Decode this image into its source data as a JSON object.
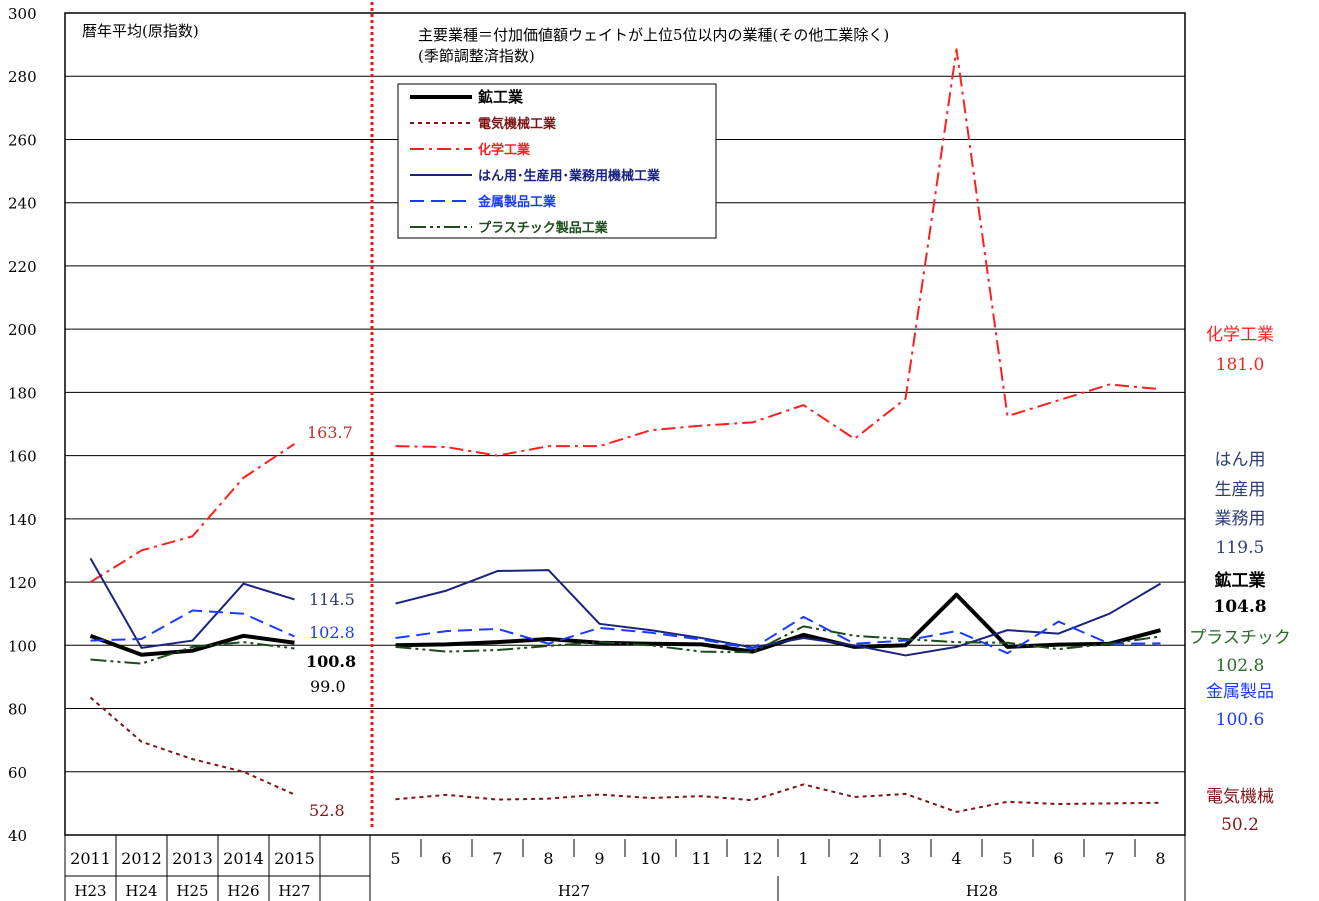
{
  "chart_data": {
    "type": "line",
    "note_annual": "暦年平均(原指数)",
    "note_monthly_line1": "主要業種＝付加価値額ウェイトが上位5位以内の業種(その他工業除く)",
    "note_monthly_line2": "(季節調整済指数)",
    "y_ticks": [
      "300",
      "280",
      "260",
      "240",
      "220",
      "200",
      "180",
      "160",
      "140",
      "120",
      "100",
      "80",
      "60",
      "40"
    ],
    "ylim": [
      40,
      300
    ],
    "grid": true,
    "legend_position": "top-center",
    "annual_categories": [
      "2011",
      "2012",
      "2013",
      "2014",
      "2015"
    ],
    "annual_era": [
      "H23",
      "H24",
      "H25",
      "H26",
      "H27"
    ],
    "monthly_categories": [
      "5",
      "6",
      "7",
      "8",
      "9",
      "10",
      "11",
      "12",
      "1",
      "2",
      "3",
      "4",
      "5",
      "6",
      "7",
      "8"
    ],
    "monthly_era_labels": [
      "H27",
      "H28"
    ],
    "series": [
      {
        "name": "鉱工業",
        "color": "#000000",
        "dash": "",
        "width": 4,
        "annual": [
          103.0,
          97.0,
          98.3,
          103.0,
          100.8
        ],
        "monthly": [
          100.0,
          100.3,
          101.0,
          102.0,
          100.8,
          100.5,
          100.3,
          98.0,
          103.3,
          99.5,
          100.0,
          116.0,
          99.5,
          100.2,
          100.5,
          104.8
        ]
      },
      {
        "name": "電気機械工業",
        "color": "#7f1616",
        "dash": "4,4",
        "width": 2,
        "annual": [
          83.5,
          69.5,
          64.0,
          60.0,
          52.8
        ],
        "monthly": [
          51.3,
          52.7,
          51.2,
          51.5,
          52.8,
          51.7,
          52.3,
          51.0,
          56.0,
          52.0,
          53.0,
          47.3,
          50.5,
          49.8,
          50.0,
          50.2
        ]
      },
      {
        "name": "化学工業",
        "color": "#ff1e1e",
        "dash": "14,5,3,5",
        "width": 2,
        "annual": [
          120.0,
          130.0,
          134.5,
          153.0,
          163.7
        ],
        "monthly": [
          163.0,
          162.7,
          160.0,
          163.0,
          163.0,
          168.0,
          169.5,
          170.5,
          176.0,
          165.3,
          178.0,
          288.5,
          172.5,
          177.5,
          182.5,
          181.0
        ]
      },
      {
        "name": "はん用･生産用･業務用機械工業",
        "color": "#1a237e",
        "dash": "",
        "width": 2,
        "annual": [
          127.5,
          99.2,
          101.5,
          119.5,
          114.5
        ],
        "monthly": [
          113.2,
          117.3,
          123.5,
          123.8,
          106.8,
          104.8,
          102.3,
          99.3,
          102.3,
          100.0,
          96.8,
          99.5,
          104.8,
          103.7,
          110.0,
          119.5
        ]
      },
      {
        "name": "金属製品工業",
        "color": "#1a3cff",
        "dash": "14,7",
        "width": 2,
        "annual": [
          101.5,
          102.0,
          111.0,
          110.0,
          102.8
        ],
        "monthly": [
          102.3,
          104.5,
          105.2,
          100.5,
          105.5,
          104.0,
          101.8,
          99.0,
          109.0,
          100.5,
          101.5,
          104.5,
          97.5,
          107.5,
          100.5,
          100.6
        ]
      },
      {
        "name": "プラスチック製品工業",
        "color": "#1b4d1b",
        "dash": "16,4,3,4,3,4",
        "width": 2,
        "annual": [
          95.5,
          94.2,
          99.5,
          101.0,
          99.0
        ],
        "monthly": [
          99.5,
          98.0,
          98.5,
          99.8,
          101.0,
          100.0,
          98.0,
          97.8,
          106.0,
          103.0,
          102.0,
          101.0,
          100.8,
          98.8,
          100.5,
          102.8
        ]
      }
    ],
    "annual_end_labels": [
      {
        "text": "163.7",
        "color": "#c03030"
      },
      {
        "text": "114.5",
        "color": "#2e3c7a"
      },
      {
        "text": "102.8",
        "color": "#1a3cff"
      },
      {
        "text": "100.8",
        "color": "#000000"
      },
      {
        "text": "99.0",
        "color": "#000000"
      },
      {
        "text": "52.8",
        "color": "#7f1616"
      }
    ],
    "right_labels": [
      {
        "lines": [
          "化学工業",
          "181.0"
        ],
        "color": "#ff2020"
      },
      {
        "lines": [
          "はん用",
          "生産用",
          "業務用",
          "119.5"
        ],
        "color": "#2e3c7a"
      },
      {
        "lines": [
          "鉱工業",
          "104.8"
        ],
        "color": "#000000"
      },
      {
        "lines": [
          "プラスチック",
          "102.8"
        ],
        "color": "#2a6a2a"
      },
      {
        "lines": [
          "金属製品",
          "100.6"
        ],
        "color": "#1a3cff"
      },
      {
        "lines": [
          "電気機械",
          "50.2"
        ],
        "color": "#7f1616"
      }
    ]
  }
}
